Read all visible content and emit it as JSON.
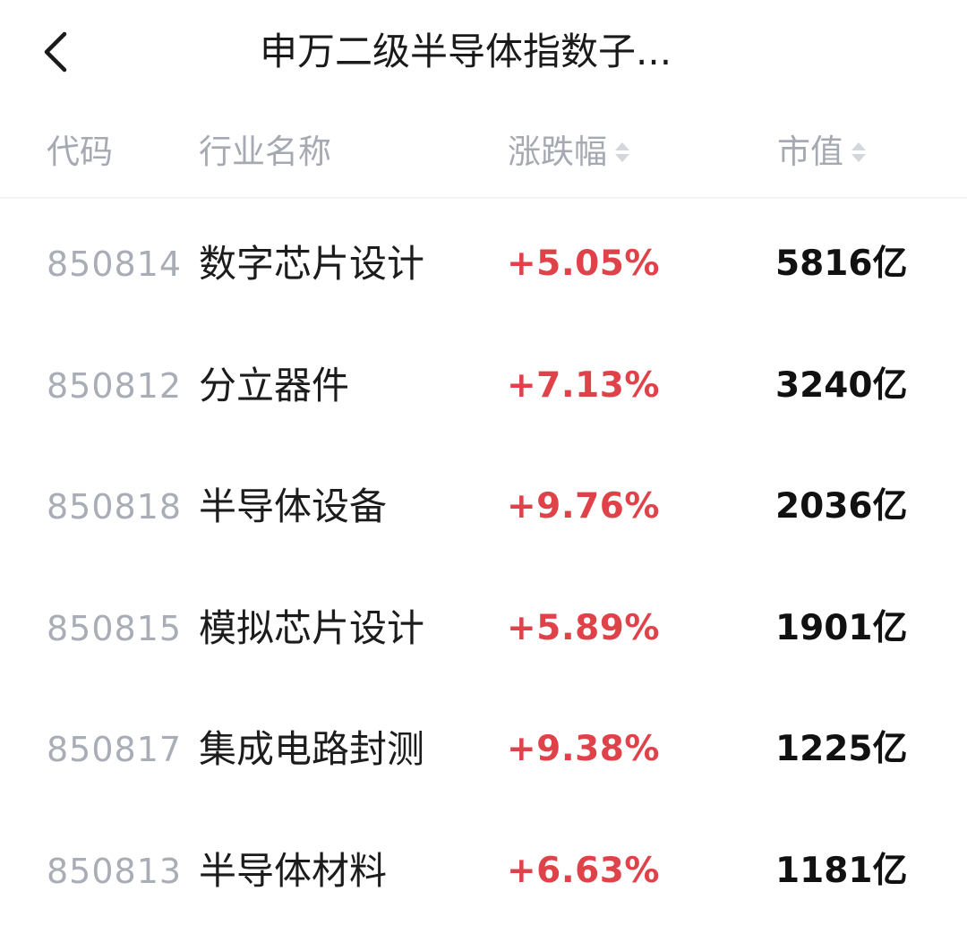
{
  "header": {
    "title": "申万二级半导体指数子...",
    "back_icon": "chevron-left-icon"
  },
  "table": {
    "columns": {
      "code": "代码",
      "name": "行业名称",
      "change": "涨跌幅",
      "market_cap": "市值"
    },
    "rows": [
      {
        "code": "850814",
        "name": "数字芯片设计",
        "change": "+5.05%",
        "market_cap": "5816亿"
      },
      {
        "code": "850812",
        "name": "分立器件",
        "change": "+7.13%",
        "market_cap": "3240亿"
      },
      {
        "code": "850818",
        "name": "半导体设备",
        "change": "+9.76%",
        "market_cap": "2036亿"
      },
      {
        "code": "850815",
        "name": "模拟芯片设计",
        "change": "+5.89%",
        "market_cap": "1901亿"
      },
      {
        "code": "850817",
        "name": "集成电路封测",
        "change": "+9.38%",
        "market_cap": "1225亿"
      },
      {
        "code": "850813",
        "name": "半导体材料",
        "change": "+6.63%",
        "market_cap": "1181亿"
      }
    ]
  },
  "colors": {
    "rise": "#e0424a",
    "header_text": "#a4a9b2",
    "code_text": "#a9aeb6",
    "sort_icon": "#d3d6db"
  }
}
